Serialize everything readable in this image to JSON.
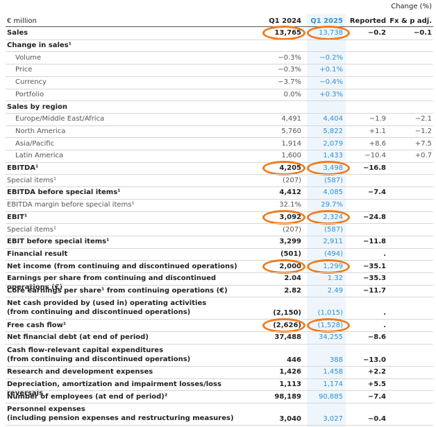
{
  "table": {
    "super_header": "Change (%)",
    "columns": [
      "€ million",
      "Q1 2024",
      "Q1 2025",
      "Reported",
      "Fx & p adj."
    ],
    "rows": [
      {
        "label": "Sales",
        "values": [
          "13,765",
          "13,738",
          "−0.2",
          "−0.1"
        ],
        "bold": true
      },
      {
        "label": "Change in sales¹",
        "values": [
          null,
          null,
          null,
          null
        ],
        "bold": true
      },
      {
        "label": "Volume",
        "values": [
          "−0.3%",
          "−0.2%",
          null,
          null
        ],
        "indent": true
      },
      {
        "label": "Price",
        "values": [
          "−0.3%",
          "+0.1%",
          null,
          null
        ],
        "indent": true
      },
      {
        "label": "Currency",
        "values": [
          "−3.7%",
          "−0.4%",
          null,
          null
        ],
        "indent": true
      },
      {
        "label": "Portfolio",
        "values": [
          "0.0%",
          "+0.3%",
          null,
          null
        ],
        "indent": true
      },
      {
        "label": "Sales by region",
        "values": [
          null,
          null,
          null,
          null
        ],
        "bold": true
      },
      {
        "label": "Europe/Middle East/Africa",
        "values": [
          "4,491",
          "4,404",
          "−1.9",
          "−2.1"
        ],
        "indent": true
      },
      {
        "label": "North America",
        "values": [
          "5,760",
          "5,822",
          "+1.1",
          "−1.2"
        ],
        "indent": true
      },
      {
        "label": "Asia/Pacific",
        "values": [
          "1,914",
          "2,079",
          "+8.6",
          "+7.5"
        ],
        "indent": true
      },
      {
        "label": "Latin America",
        "values": [
          "1,600",
          "1,433",
          "−10.4",
          "+0.7"
        ],
        "indent": true
      },
      {
        "label": "EBITDA¹",
        "values": [
          "4,205",
          "3,498",
          "−16.8",
          null
        ],
        "bold": true
      },
      {
        "label": "Special items¹",
        "values": [
          "(207)",
          "(587)",
          null,
          null
        ]
      },
      {
        "label": "EBITDA before special items¹",
        "values": [
          "4,412",
          "4,085",
          "−7.4",
          null
        ],
        "bold": true
      },
      {
        "label": "EBITDA margin before special items¹",
        "values": [
          "32.1%",
          "29.7%",
          null,
          null
        ]
      },
      {
        "label": "EBIT¹",
        "values": [
          "3,092",
          "2,324",
          "−24.8",
          null
        ],
        "bold": true
      },
      {
        "label": "Special items¹",
        "values": [
          "(207)",
          "(587)",
          null,
          null
        ]
      },
      {
        "label": "EBIT before special items¹",
        "values": [
          "3,299",
          "2,911",
          "−11.8",
          null
        ],
        "bold": true
      },
      {
        "label": "Financial result",
        "values": [
          "(501)",
          "(494)",
          ".",
          null
        ],
        "bold": true
      },
      {
        "label": "Net income (from continuing and discontinued operations)",
        "values": [
          "2,000",
          "1,299",
          "−35.1",
          null
        ],
        "bold": true
      },
      {
        "label": "Earnings per share from continuing and discontinued operations (€)",
        "values": [
          "2.04",
          "1.32",
          "−35.3",
          null
        ],
        "bold": true
      },
      {
        "label": "Core earnings per share¹ from continuing operations (€)",
        "values": [
          "2.82",
          "2.49",
          "−11.7",
          null
        ],
        "bold": true
      },
      {
        "label": "Net cash provided by (used in) operating activities\n(from continuing and discontinued operations)",
        "values": [
          "(2,150)",
          "(1,015)",
          ".",
          null
        ],
        "bold": true
      },
      {
        "label": "Free cash flow¹",
        "values": [
          "(2,626)",
          "(1,528)",
          ".",
          null
        ],
        "bold": true
      },
      {
        "label": "Net financial debt (at end of period)",
        "values": [
          "37,488",
          "34,255",
          "−8.6",
          null
        ],
        "bold": true
      },
      {
        "label": "Cash flow-relevant capital expenditures\n(from continuing and discontinued operations)",
        "values": [
          "446",
          "388",
          "−13.0",
          null
        ],
        "bold": true
      },
      {
        "label": "Research and development expenses",
        "values": [
          "1,426",
          "1,458",
          "+2.2",
          null
        ],
        "bold": true
      },
      {
        "label": "Depreciation, amortization and impairment losses/loss reversals",
        "values": [
          "1,113",
          "1,174",
          "+5.5",
          null
        ],
        "bold": true
      },
      {
        "label": "Number of employees (at end of period)²",
        "values": [
          "98,189",
          "90,885",
          "−7.4",
          null
        ],
        "bold": true
      },
      {
        "label": "Personnel expenses\n(including pension expenses and restructuring measures)",
        "values": [
          "3,040",
          "3,027",
          "−0.4",
          null
        ],
        "bold": true
      }
    ]
  }
}
